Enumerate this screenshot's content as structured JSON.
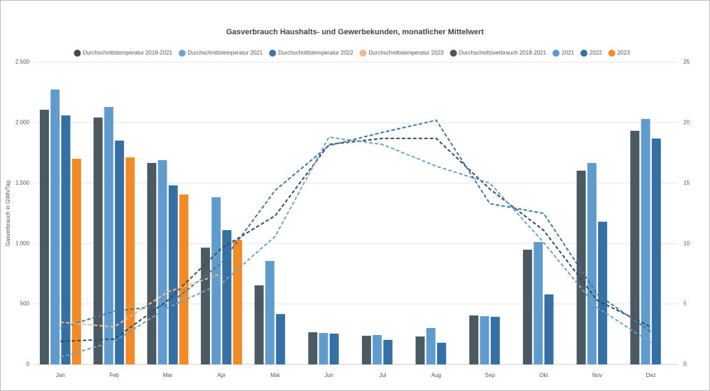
{
  "chart_data": {
    "type": "bar",
    "title": "Gasverbrauch Haushalts- und Gewerbekunden, monatlicher Mittelwert",
    "y_label": "Gasverbrauch in GWh/Tag",
    "categories": [
      "Jan",
      "Feb",
      "Mar",
      "Apr",
      "Mai",
      "Jun",
      "Jul",
      "Aug",
      "Sep",
      "Okt",
      "Nov",
      "Dez"
    ],
    "ylim": [
      0,
      2500
    ],
    "yticks": [
      0,
      500,
      {
        "value": 1000,
        "label": "1.000"
      },
      {
        "value": 1500,
        "label": "1.500"
      },
      {
        "value": 2000,
        "label": "2.000"
      },
      {
        "value": 2500,
        "label": "2.500"
      }
    ],
    "y2lim": [
      0,
      25
    ],
    "y2ticks": [
      0,
      5,
      10,
      15,
      20,
      25
    ],
    "grid": true,
    "legend": "top",
    "series": [
      {
        "name": "Durchschnittstemperatur 2018-2021",
        "type": "line",
        "axis": "y2",
        "color": "#3f4a52",
        "values": [
          1.9,
          2.1,
          5.3,
          9.6,
          12.3,
          18.2,
          18.7,
          18.7,
          14.5,
          11.1,
          5.3,
          3.1
        ]
      },
      {
        "name": "Durchschnittstemperatur 2021",
        "type": "line",
        "axis": "y2",
        "color": "#6aa3d2",
        "values": [
          0.6,
          1.9,
          4.7,
          6.7,
          10.6,
          18.8,
          18.2,
          16.4,
          15.0,
          10.1,
          4.7,
          1.8
        ]
      },
      {
        "name": "Durchschnittstemperatur 2022",
        "type": "line",
        "axis": "y2",
        "color": "#3a78ad",
        "values": [
          3.0,
          4.4,
          4.9,
          8.4,
          14.4,
          18.1,
          19.2,
          20.2,
          13.3,
          12.5,
          5.8,
          2.7
        ]
      },
      {
        "name": "Durchschnittstemperatur 2023",
        "type": "line",
        "axis": "y2",
        "color": "#f3b98a",
        "values": [
          3.5,
          3.1,
          6.0,
          7.5,
          null,
          null,
          null,
          null,
          null,
          null,
          null,
          null
        ]
      },
      {
        "name": "Durchschnittsverbrauch 2018-2021",
        "type": "bar",
        "color": "#4b5963",
        "values": [
          2107,
          2043,
          1667,
          966,
          654,
          266,
          237,
          231,
          405,
          949,
          1603,
          1933
        ]
      },
      {
        "name": "2021",
        "type": "bar",
        "color": "#5f9bcc",
        "values": [
          2274,
          2130,
          1690,
          1383,
          856,
          260,
          243,
          301,
          399,
          1013,
          1667,
          2031
        ]
      },
      {
        "name": "2022",
        "type": "bar",
        "color": "#3570a5",
        "values": [
          2060,
          1852,
          1481,
          1111,
          417,
          255,
          203,
          179,
          394,
          579,
          1181,
          1869
        ]
      },
      {
        "name": "2023",
        "type": "bar",
        "color": "#f28a26",
        "values": [
          1701,
          1713,
          1406,
          1030,
          null,
          null,
          null,
          null,
          null,
          null,
          null,
          null
        ]
      }
    ]
  }
}
